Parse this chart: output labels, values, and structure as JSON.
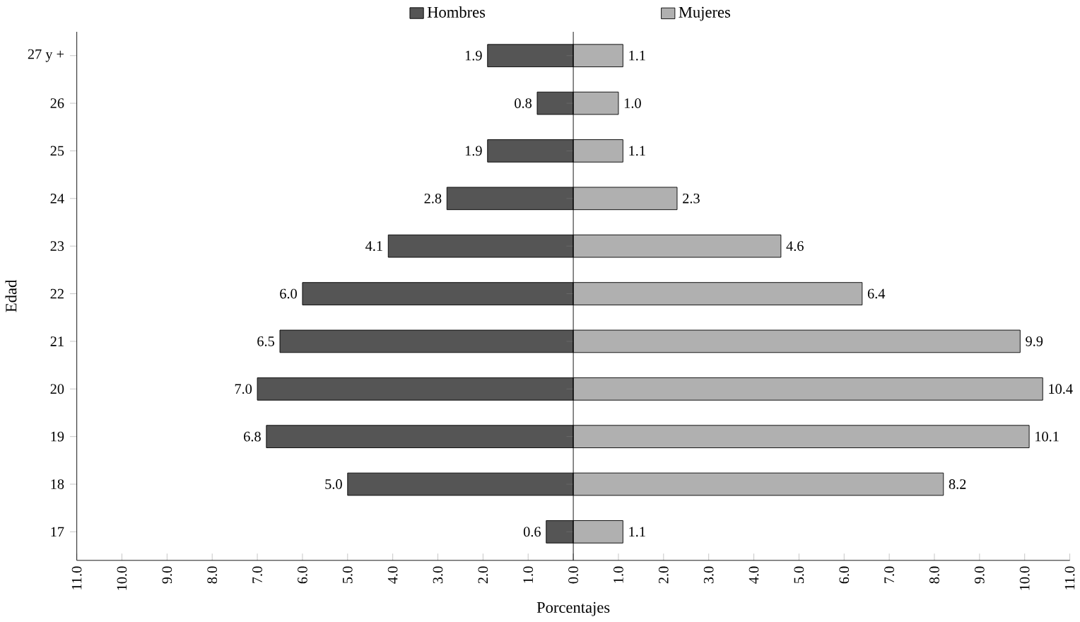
{
  "chart_data": [
    {
      "type": "bar",
      "orientation": "horizontal",
      "xlabel": "Porcentajes",
      "ylabel": "Edad",
      "categories": [
        "27 y +",
        "26",
        "25",
        "24",
        "23",
        "22",
        "21",
        "20",
        "19",
        "18",
        "17"
      ],
      "series": [
        {
          "name": "Hombres",
          "color": "#555555",
          "values": [
            1.9,
            0.8,
            1.9,
            2.8,
            4.1,
            6.0,
            6.5,
            7.0,
            6.8,
            5.0,
            0.6
          ],
          "value_labels": [
            "1.9",
            "0.8",
            "1.9",
            "2.8",
            "4.1",
            "6.0",
            "6.5",
            "7.0",
            "6.8",
            "5.0",
            "0.6"
          ]
        }
      ],
      "xlim": [
        11,
        0
      ],
      "xticks": [
        {
          "value": 11,
          "label": "11.0"
        },
        {
          "value": 10,
          "label": "10.0"
        },
        {
          "value": 9,
          "label": "9.0"
        },
        {
          "value": 8,
          "label": "8.0"
        },
        {
          "value": 7,
          "label": "7.0"
        },
        {
          "value": 6,
          "label": "6.0"
        },
        {
          "value": 5,
          "label": "5.0"
        },
        {
          "value": 4,
          "label": "4.0"
        },
        {
          "value": 3,
          "label": "3.0"
        },
        {
          "value": 2,
          "label": "2.0"
        },
        {
          "value": 1,
          "label": "1.0"
        },
        {
          "value": 0,
          "label": "0.0"
        }
      ],
      "legend": "top",
      "grid": false
    },
    {
      "type": "bar",
      "orientation": "horizontal",
      "categories": [
        null,
        null,
        null,
        null,
        null,
        null,
        null,
        null,
        null,
        null,
        null
      ],
      "grid": false,
      "series": [
        {
          "name": "Mujeres",
          "color": "#b0b0b0",
          "values": [
            1.1,
            1.0,
            1.1,
            2.3,
            4.6,
            6.4,
            9.9,
            10.4,
            10.1,
            8.2,
            1.1
          ],
          "value_labels": [
            "1.1",
            "1.0",
            "1.1",
            "2.3",
            "4.6",
            "6.4",
            "9.9",
            "10.4",
            "10.1",
            "8.2",
            "1.1"
          ]
        }
      ],
      "xlim": [
        0,
        11
      ],
      "xticks": [
        {
          "value": 0,
          "label": null
        },
        {
          "value": 1,
          "label": "1.0"
        },
        {
          "value": 2,
          "label": "2.0"
        },
        {
          "value": 3,
          "label": "3.0"
        },
        {
          "value": 4,
          "label": "4.0"
        },
        {
          "value": 5,
          "label": "5.0"
        },
        {
          "value": 6,
          "label": "6.0"
        },
        {
          "value": 7,
          "label": "7.0"
        },
        {
          "value": 8,
          "label": "8.0"
        },
        {
          "value": 9,
          "label": "9.0"
        },
        {
          "value": 10,
          "label": "10.0"
        },
        {
          "value": 11,
          "label": "11.0"
        }
      ],
      "legend": "top"
    }
  ]
}
